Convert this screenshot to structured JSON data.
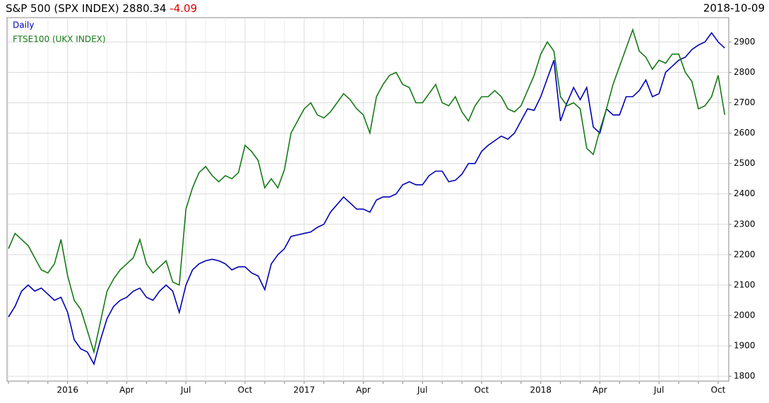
{
  "chart_data": {
    "type": "line",
    "title": "S&P 500 (SPX INDEX)",
    "last": 2880.34,
    "change": -4.09,
    "date": "2018-10-09",
    "categories": [
      null,
      null,
      null,
      null,
      null,
      null,
      null,
      null,
      null,
      "2016",
      null,
      null,
      null,
      null,
      null,
      null,
      null,
      null,
      "Apr",
      null,
      null,
      null,
      null,
      null,
      null,
      null,
      null,
      "Jul",
      null,
      null,
      null,
      null,
      null,
      null,
      null,
      null,
      "Oct",
      null,
      null,
      null,
      null,
      null,
      null,
      null,
      null,
      "2017",
      null,
      null,
      null,
      null,
      null,
      null,
      null,
      null,
      "Apr",
      null,
      null,
      null,
      null,
      null,
      null,
      null,
      null,
      "Jul",
      null,
      null,
      null,
      null,
      null,
      null,
      null,
      null,
      "Oct",
      null,
      null,
      null,
      null,
      null,
      null,
      null,
      null,
      "2018",
      null,
      null,
      null,
      null,
      null,
      null,
      null,
      null,
      "Apr",
      null,
      null,
      null,
      null,
      null,
      null,
      null,
      null,
      "Jul",
      null,
      null,
      null,
      null,
      null,
      null,
      null,
      null,
      "Oct",
      null
    ],
    "series": [
      {
        "name": "Daily",
        "color": "#0000b4",
        "values": [
          1995,
          2030,
          2080,
          2100,
          2080,
          2090,
          2070,
          2050,
          2060,
          2010,
          1920,
          1890,
          1880,
          1840,
          1920,
          1990,
          2030,
          2050,
          2060,
          2080,
          2090,
          2060,
          2050,
          2080,
          2100,
          2080,
          2010,
          2100,
          2150,
          2170,
          2180,
          2185,
          2180,
          2170,
          2150,
          2160,
          2160,
          2140,
          2130,
          2085,
          2170,
          2200,
          2220,
          2260,
          2265,
          2270,
          2275,
          2290,
          2300,
          2340,
          2365,
          2390,
          2370,
          2350,
          2350,
          2340,
          2380,
          2390,
          2390,
          2400,
          2430,
          2440,
          2430,
          2430,
          2460,
          2475,
          2475,
          2440,
          2445,
          2465,
          2500,
          2500,
          2540,
          2560,
          2575,
          2590,
          2580,
          2600,
          2640,
          2680,
          2675,
          2720,
          2780,
          2840,
          2640,
          2700,
          2750,
          2710,
          2750,
          2620,
          2600,
          2680,
          2660,
          2660,
          2720,
          2720,
          2740,
          2775,
          2720,
          2730,
          2800,
          2820,
          2840,
          2850,
          2875,
          2890,
          2900,
          2930,
          2900,
          2880
        ]
      },
      {
        "name": "FTSE100  (UKX INDEX)",
        "color": "#167a16",
        "values": [
          2220,
          2270,
          2250,
          2230,
          2190,
          2150,
          2140,
          2170,
          2250,
          2130,
          2050,
          2020,
          1950,
          1880,
          1980,
          2080,
          2120,
          2150,
          2170,
          2190,
          2250,
          2170,
          2140,
          2160,
          2180,
          2110,
          2100,
          2350,
          2420,
          2470,
          2490,
          2460,
          2440,
          2460,
          2450,
          2470,
          2560,
          2540,
          2510,
          2420,
          2450,
          2420,
          2480,
          2600,
          2640,
          2680,
          2700,
          2660,
          2650,
          2670,
          2700,
          2730,
          2710,
          2680,
          2660,
          2600,
          2720,
          2760,
          2790,
          2800,
          2760,
          2750,
          2700,
          2700,
          2730,
          2760,
          2700,
          2690,
          2720,
          2670,
          2640,
          2690,
          2720,
          2720,
          2740,
          2720,
          2680,
          2670,
          2690,
          2740,
          2790,
          2860,
          2900,
          2870,
          2720,
          2690,
          2700,
          2680,
          2550,
          2530,
          2610,
          2680,
          2760,
          2820,
          2880,
          2940,
          2870,
          2850,
          2810,
          2840,
          2830,
          2860,
          2860,
          2800,
          2770,
          2680,
          2690,
          2720,
          2790,
          2660
        ]
      }
    ],
    "ylim": [
      1784,
      2980
    ],
    "yticks": [
      1800,
      1900,
      2000,
      2100,
      2200,
      2300,
      2400,
      2500,
      2600,
      2700,
      2800,
      2900
    ],
    "grid": true
  }
}
